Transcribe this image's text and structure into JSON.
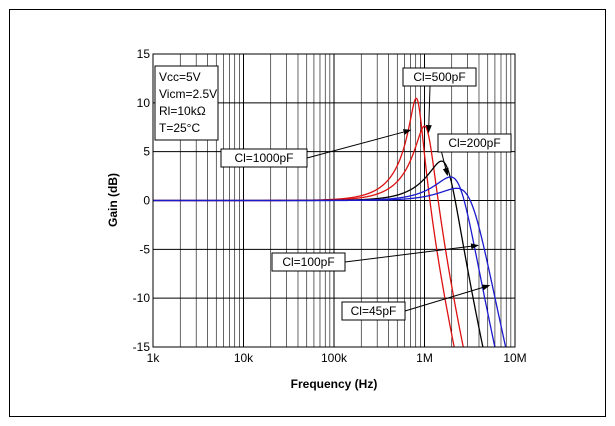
{
  "chart_data": {
    "type": "line",
    "title": "",
    "xlabel": "Frequency (Hz)",
    "ylabel": "Gain (dB)",
    "xscale": "log",
    "xlim": [
      1000,
      10000000
    ],
    "ylim": [
      -15,
      15
    ],
    "x_ticks": [
      {
        "value": 1000,
        "label": "1k"
      },
      {
        "value": 10000,
        "label": "10k"
      },
      {
        "value": 100000,
        "label": "100k"
      },
      {
        "value": 1000000,
        "label": "1M"
      },
      {
        "value": 10000000,
        "label": "10M"
      }
    ],
    "y_ticks": [
      {
        "value": 15,
        "label": "15"
      },
      {
        "value": 10,
        "label": "10"
      },
      {
        "value": 5,
        "label": "5"
      },
      {
        "value": 0,
        "label": "0"
      },
      {
        "value": -5,
        "label": "-5"
      },
      {
        "value": -10,
        "label": "-10"
      },
      {
        "value": -15,
        "label": "-15"
      }
    ],
    "grid": true,
    "conditions": [
      "Vcc=5V",
      "Vicm=2.5V",
      "Rl=10kΩ",
      "T=25°C"
    ],
    "series": [
      {
        "name": "Cl=1000pF",
        "color": "#dd1111",
        "f0": 830000,
        "q": 3.3
      },
      {
        "name": "Cl=500pF",
        "color": "#dd1111",
        "f0": 1050000,
        "q": 2.35
      },
      {
        "name": "Cl=200pF",
        "color": "#000000",
        "f0": 1750000,
        "q": 1.5
      },
      {
        "name": "Cl=100pF",
        "color": "#1a1acc",
        "f0": 2400000,
        "q": 1.2
      },
      {
        "name": "Cl=45pF",
        "color": "#1a1acc",
        "f0": 3200000,
        "q": 1.0
      }
    ],
    "annotations": [
      {
        "text": "Cl=1000pF",
        "series": 0
      },
      {
        "text": "Cl=500pF",
        "series": 1
      },
      {
        "text": "Cl=200pF",
        "series": 2
      },
      {
        "text": "Cl=100pF",
        "series": 3
      },
      {
        "text": "Cl=45pF",
        "series": 4
      }
    ]
  }
}
